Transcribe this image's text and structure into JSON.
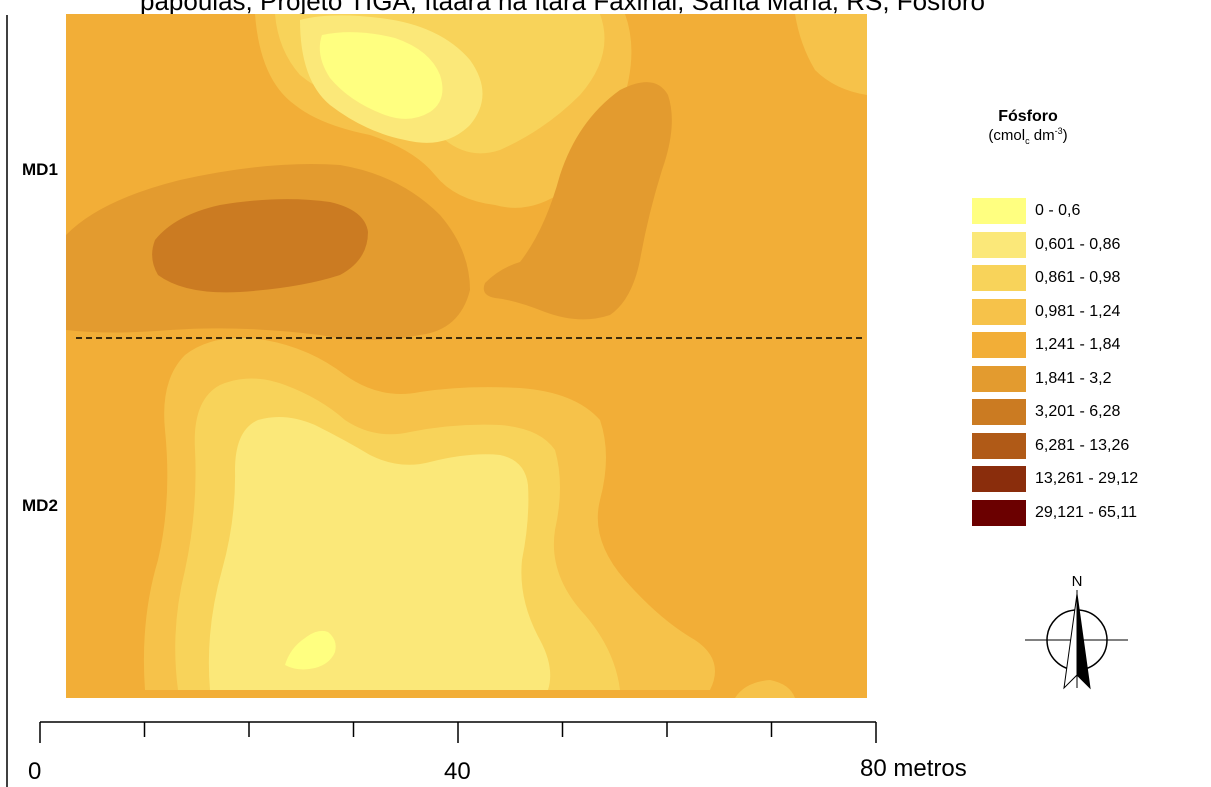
{
  "header": {
    "caption": "papoulas, Projeto TIGA, Itaara na Itara Faxinal, Santa Maria, RS, Fósforo"
  },
  "map": {
    "zones": [
      {
        "label": "MD1"
      },
      {
        "label": "MD2"
      }
    ],
    "divider": "dashed"
  },
  "legend": {
    "title": "Fósforo",
    "unit_main": "(cmol",
    "unit_sub": "c",
    "unit_mid": " dm",
    "unit_sup": "-3",
    "unit_end": ")",
    "classes": [
      {
        "label": "0 - 0,6",
        "color": "#ffff80"
      },
      {
        "label": "0,601 - 0,86",
        "color": "#fbe879"
      },
      {
        "label": "0,861 - 0,98",
        "color": "#f8d35a"
      },
      {
        "label": "0,981 - 1,24",
        "color": "#f6c24a"
      },
      {
        "label": "1,241 - 1,84",
        "color": "#f2ae37"
      },
      {
        "label": "1,841 - 3,2",
        "color": "#e39b2f"
      },
      {
        "label": "3,201 - 6,28",
        "color": "#cb7b22"
      },
      {
        "label": "6,281 - 13,26",
        "color": "#b05a17"
      },
      {
        "label": "13,261 - 29,12",
        "color": "#8a2d0c"
      },
      {
        "label": "29,121 - 65,11",
        "color": "#6b0000"
      }
    ]
  },
  "north_arrow": {
    "label": "N",
    "icon": "north-arrow-icon"
  },
  "scale_bar": {
    "labels": [
      "0",
      "40",
      "80"
    ],
    "unit": "metros"
  }
}
